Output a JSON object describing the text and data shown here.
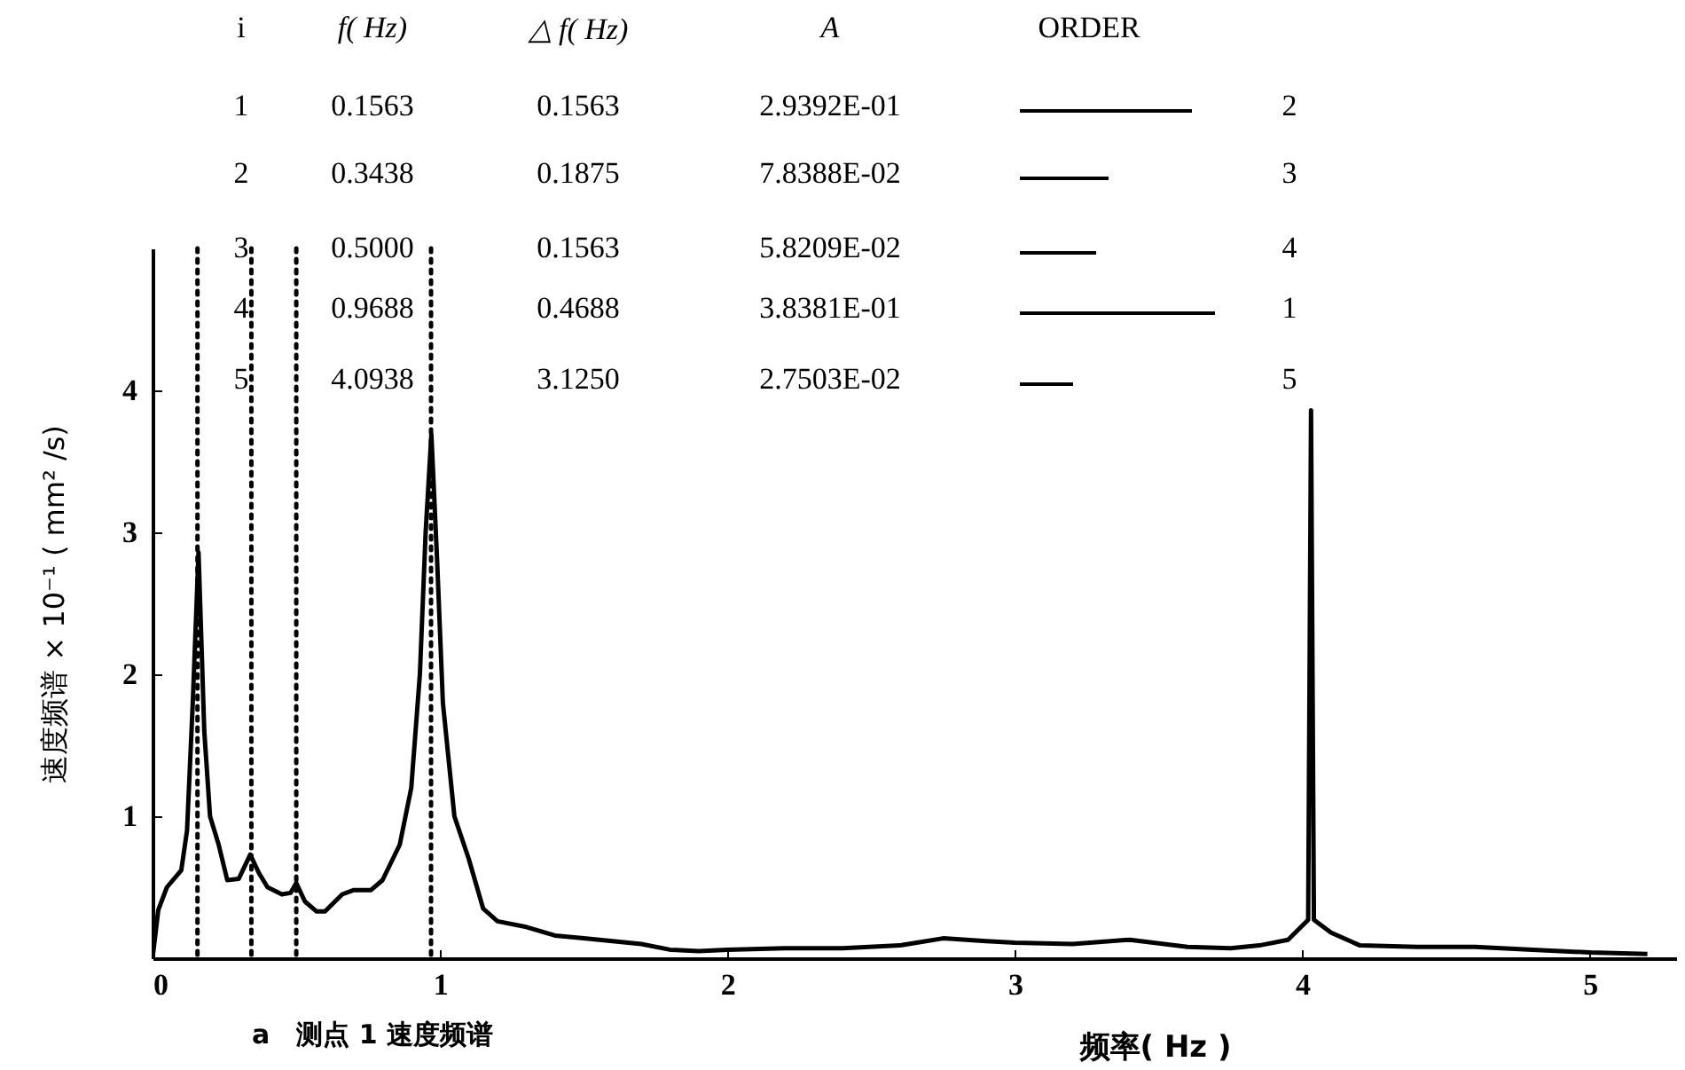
{
  "chart_data": {
    "type": "line",
    "title": "a　测点 1 速度频谱",
    "xlabel": "频率( Hz )",
    "ylabel": "速度频谱 × 10⁻¹ ( mm² /s)",
    "x": [
      0,
      0.02,
      0.05,
      0.1,
      0.12,
      0.14,
      0.16,
      0.18,
      0.2,
      0.23,
      0.26,
      0.3,
      0.34,
      0.37,
      0.4,
      0.45,
      0.48,
      0.5,
      0.53,
      0.57,
      0.6,
      0.66,
      0.7,
      0.76,
      0.8,
      0.86,
      0.9,
      0.93,
      0.95,
      0.97,
      0.99,
      1.01,
      1.05,
      1.1,
      1.15,
      1.2,
      1.3,
      1.4,
      1.5,
      1.6,
      1.7,
      1.8,
      1.9,
      2.0,
      2.2,
      2.4,
      2.6,
      2.75,
      2.9,
      3.0,
      3.2,
      3.4,
      3.6,
      3.75,
      3.85,
      3.95,
      4.02,
      4.03,
      4.04,
      4.1,
      4.2,
      4.4,
      4.6,
      4.8,
      5.0,
      5.2
    ],
    "series": [
      {
        "color": "#000000",
        "values": [
          0,
          0.34,
          0.5,
          0.62,
          0.9,
          1.8,
          2.86,
          1.6,
          1.0,
          0.8,
          0.55,
          0.56,
          0.73,
          0.6,
          0.5,
          0.45,
          0.46,
          0.53,
          0.4,
          0.33,
          0.33,
          0.45,
          0.48,
          0.48,
          0.55,
          0.8,
          1.2,
          2.0,
          3.0,
          3.69,
          2.8,
          1.8,
          1.0,
          0.7,
          0.35,
          0.26,
          0.22,
          0.16,
          0.14,
          0.12,
          0.1,
          0.06,
          0.05,
          0.06,
          0.07,
          0.07,
          0.09,
          0.14,
          0.12,
          0.11,
          0.1,
          0.13,
          0.08,
          0.07,
          0.09,
          0.13,
          0.27,
          3.86,
          0.27,
          0.18,
          0.09,
          0.08,
          0.08,
          0.06,
          0.04,
          0.03
        ]
      }
    ],
    "xlim": [
      0,
      5.3
    ],
    "ylim": [
      0,
      5
    ],
    "xticks": [
      0,
      1,
      2,
      3,
      4,
      5
    ],
    "yticks": [
      1,
      2,
      3,
      4
    ],
    "grid": false,
    "line_style": "solid",
    "marker": "none",
    "ref_lines": [
      {
        "axis": "x",
        "value": 0.1563,
        "line_style": "dotted",
        "color": "#000000"
      },
      {
        "axis": "x",
        "value": 0.3438,
        "line_style": "dotted",
        "color": "#000000"
      },
      {
        "axis": "x",
        "value": 0.5,
        "line_style": "dotted",
        "color": "#000000"
      },
      {
        "axis": "x",
        "value": 0.9688,
        "line_style": "dotted",
        "color": "#000000"
      }
    ],
    "annotations": [
      "i",
      "f( Hz)",
      "△ f( Hz)",
      "A",
      "ORDER",
      "1",
      "0.1563",
      "0.1563",
      "2.9392E-01",
      "2",
      "2",
      "0.3438",
      "0.1875",
      "7.8388E-02",
      "3",
      "3",
      "0.5000",
      "0.1563",
      "5.8209E-02",
      "4",
      "4",
      "0.9688",
      "0.4688",
      "3.8381E-01",
      "1",
      "5",
      "4.0938",
      "3.1250",
      "2.7503E-02",
      "5"
    ]
  }
}
